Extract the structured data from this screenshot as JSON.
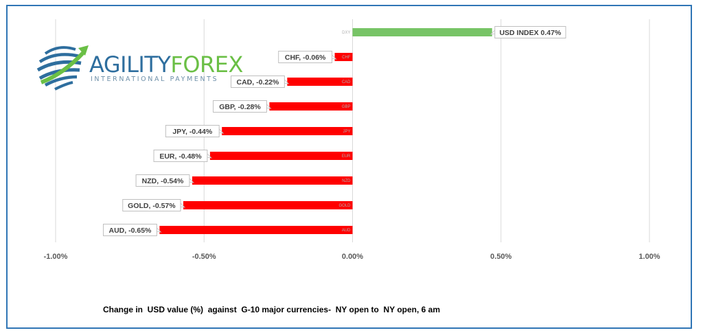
{
  "caption": "Change in  USD value (%)  against  G-10 major currencies-  NY open to  NY open, 6 am",
  "logo": {
    "name_part1": "AGILITY",
    "name_part2": "FOREX",
    "tagline": "INTERNATIONAL PAYMENTS"
  },
  "colors": {
    "positive": "#77c466",
    "negative": "#ff0000",
    "gridline": "#d9d9d9",
    "frame": "#2f75b5"
  },
  "chart_data": {
    "type": "bar",
    "orientation": "horizontal",
    "xlim": [
      -0.01,
      0.01
    ],
    "x_ticks": [
      "-1.00%",
      "-0.50%",
      "0.00%",
      "0.50%",
      "1.00%"
    ],
    "tick_values": [
      -0.01,
      -0.005,
      0,
      0.005,
      0.01
    ],
    "grid": true,
    "categories": [
      "DXY",
      "CHF",
      "CAD",
      "GBP",
      "JPY",
      "EUR",
      "NZD",
      "GOLD",
      "AUD"
    ],
    "values": [
      0.0047,
      -0.0006,
      -0.0022,
      -0.0028,
      -0.0044,
      -0.0048,
      -0.0054,
      -0.0057,
      -0.0065
    ],
    "data_labels": [
      "USD INDEX 0.47%",
      "CHF, -0.06%",
      "CAD, -0.22%",
      "GBP, -0.28%",
      "JPY, -0.44%",
      "EUR, -0.48%",
      "NZD, -0.54%",
      "GOLD, -0.57%",
      "AUD, -0.65%"
    ],
    "inbar_labels": [
      "DXY",
      "CHF",
      "CAD",
      "GBP",
      "JPY",
      "EUR",
      "NZD",
      "GOLD",
      "AUD"
    ]
  }
}
